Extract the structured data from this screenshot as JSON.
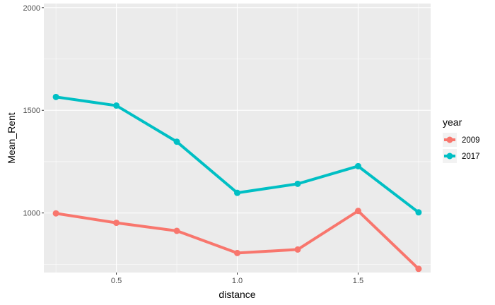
{
  "chart_data": {
    "type": "line",
    "x": [
      0.25,
      0.5,
      0.75,
      1.0,
      1.25,
      1.5,
      1.75
    ],
    "xlabel": "distance",
    "ylabel": "Mean_Rent",
    "xlim": [
      0.2,
      1.8
    ],
    "ylim": [
      710,
      2020
    ],
    "xticks": [
      0.5,
      1.0,
      1.5
    ],
    "xtick_labels": [
      "0.5",
      "1.0",
      "1.5"
    ],
    "yticks": [
      1000,
      1500,
      2000
    ],
    "ytick_labels": [
      "1000",
      "1500",
      "2000"
    ],
    "grid": true,
    "legend": {
      "title": "year",
      "placement": "right"
    },
    "series": [
      {
        "name": "2009",
        "color": "#F8766D",
        "values": [
          998,
          952,
          913,
          805,
          822,
          1010,
          728
        ]
      },
      {
        "name": "2017",
        "color": "#00BFC4",
        "values": [
          1565,
          1523,
          1347,
          1098,
          1142,
          1228,
          1003
        ]
      }
    ]
  }
}
